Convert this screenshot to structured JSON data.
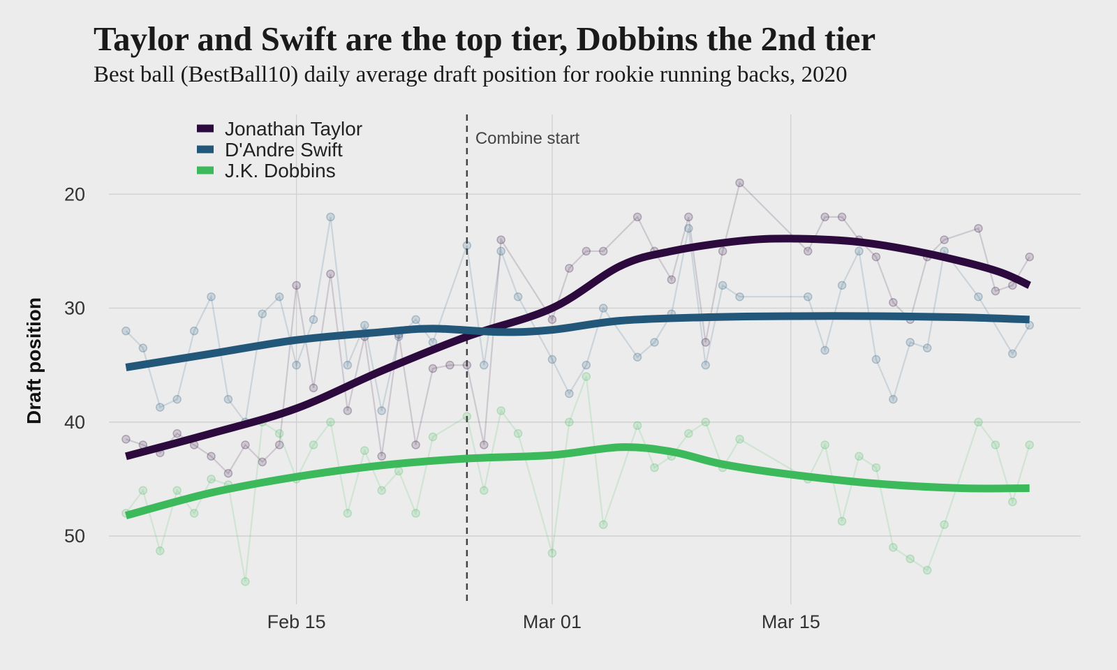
{
  "chart_data": {
    "type": "line",
    "title": "Taylor and Swift are the top tier, Dobbins the 2nd tier",
    "subtitle": "Best ball (BestBall10) daily average draft position for rookie running backs, 2020",
    "ylabel": "Draft position",
    "xlabel": "",
    "y_reversed": true,
    "ylim": [
      56,
      13
    ],
    "xlim": [
      "2020-02-04",
      "2020-04-01"
    ],
    "x_ticks": [
      {
        "date": "2020-02-15",
        "label": "Feb 15"
      },
      {
        "date": "2020-03-01",
        "label": "Mar 01"
      },
      {
        "date": "2020-03-15",
        "label": "Mar 15"
      }
    ],
    "y_ticks": [
      20,
      30,
      40,
      50
    ],
    "grid": true,
    "legend_position": "top-left",
    "annotations": [
      {
        "type": "vline",
        "date": "2020-02-25",
        "label": "Combine start"
      }
    ],
    "series": [
      {
        "name": "Jonathan Taylor",
        "color": "#2d0a3e",
        "points": [
          [
            "2020-02-05",
            41.5
          ],
          [
            "2020-02-06",
            42
          ],
          [
            "2020-02-07",
            42.7
          ],
          [
            "2020-02-08",
            41
          ],
          [
            "2020-02-09",
            42
          ],
          [
            "2020-02-10",
            43
          ],
          [
            "2020-02-11",
            44.5
          ],
          [
            "2020-02-12",
            42
          ],
          [
            "2020-02-13",
            43.5
          ],
          [
            "2020-02-14",
            42
          ],
          [
            "2020-02-15",
            28
          ],
          [
            "2020-02-16",
            37
          ],
          [
            "2020-02-17",
            27
          ],
          [
            "2020-02-18",
            39
          ],
          [
            "2020-02-19",
            32.5
          ],
          [
            "2020-02-20",
            43
          ],
          [
            "2020-02-21",
            32.3
          ],
          [
            "2020-02-22",
            42
          ],
          [
            "2020-02-23",
            35.3
          ],
          [
            "2020-02-24",
            35
          ],
          [
            "2020-02-25",
            35
          ],
          [
            "2020-02-26",
            42
          ],
          [
            "2020-02-27",
            24
          ],
          [
            "2020-03-01",
            31
          ],
          [
            "2020-03-02",
            26.5
          ],
          [
            "2020-03-03",
            25
          ],
          [
            "2020-03-04",
            25
          ],
          [
            "2020-03-06",
            22
          ],
          [
            "2020-03-07",
            25
          ],
          [
            "2020-03-08",
            27.5
          ],
          [
            "2020-03-09",
            22
          ],
          [
            "2020-03-10",
            33
          ],
          [
            "2020-03-11",
            25
          ],
          [
            "2020-03-12",
            19
          ],
          [
            "2020-03-16",
            25
          ],
          [
            "2020-03-17",
            22
          ],
          [
            "2020-03-18",
            22
          ],
          [
            "2020-03-19",
            24
          ],
          [
            "2020-03-20",
            25.5
          ],
          [
            "2020-03-21",
            29.5
          ],
          [
            "2020-03-22",
            31
          ],
          [
            "2020-03-23",
            25.5
          ],
          [
            "2020-03-24",
            24
          ],
          [
            "2020-03-26",
            23
          ],
          [
            "2020-03-27",
            28.5
          ],
          [
            "2020-03-28",
            28
          ],
          [
            "2020-03-29",
            25.5
          ]
        ],
        "trend": [
          [
            "2020-02-05",
            43
          ],
          [
            "2020-02-10",
            41
          ],
          [
            "2020-02-15",
            38.8
          ],
          [
            "2020-02-20",
            35.5
          ],
          [
            "2020-02-25",
            32.5
          ],
          [
            "2020-03-01",
            30
          ],
          [
            "2020-03-05",
            26.3
          ],
          [
            "2020-03-08",
            25
          ],
          [
            "2020-03-12",
            24.1
          ],
          [
            "2020-03-15",
            23.9
          ],
          [
            "2020-03-19",
            24.2
          ],
          [
            "2020-03-23",
            25.2
          ],
          [
            "2020-03-27",
            26.7
          ],
          [
            "2020-03-29",
            28
          ]
        ]
      },
      {
        "name": "D'Andre Swift",
        "color": "#22577a",
        "points": [
          [
            "2020-02-05",
            32
          ],
          [
            "2020-02-06",
            33.5
          ],
          [
            "2020-02-07",
            38.7
          ],
          [
            "2020-02-08",
            38
          ],
          [
            "2020-02-09",
            32
          ],
          [
            "2020-02-10",
            29
          ],
          [
            "2020-02-11",
            38
          ],
          [
            "2020-02-12",
            40
          ],
          [
            "2020-02-13",
            30.5
          ],
          [
            "2020-02-14",
            29
          ],
          [
            "2020-02-15",
            35
          ],
          [
            "2020-02-16",
            31
          ],
          [
            "2020-02-17",
            22
          ],
          [
            "2020-02-18",
            35
          ],
          [
            "2020-02-19",
            31.5
          ],
          [
            "2020-02-20",
            39
          ],
          [
            "2020-02-21",
            32.5
          ],
          [
            "2020-02-22",
            31
          ],
          [
            "2020-02-23",
            33
          ],
          [
            "2020-02-25",
            24.5
          ],
          [
            "2020-02-26",
            35
          ],
          [
            "2020-02-27",
            25
          ],
          [
            "2020-02-28",
            29
          ],
          [
            "2020-03-01",
            34.5
          ],
          [
            "2020-03-02",
            37.5
          ],
          [
            "2020-03-03",
            35
          ],
          [
            "2020-03-04",
            30
          ],
          [
            "2020-03-06",
            34.3
          ],
          [
            "2020-03-07",
            33
          ],
          [
            "2020-03-08",
            30.5
          ],
          [
            "2020-03-09",
            23
          ],
          [
            "2020-03-10",
            35
          ],
          [
            "2020-03-11",
            28
          ],
          [
            "2020-03-12",
            29
          ],
          [
            "2020-03-16",
            29
          ],
          [
            "2020-03-17",
            33.7
          ],
          [
            "2020-03-18",
            28
          ],
          [
            "2020-03-19",
            25
          ],
          [
            "2020-03-20",
            34.5
          ],
          [
            "2020-03-21",
            38
          ],
          [
            "2020-03-22",
            33
          ],
          [
            "2020-03-23",
            33.5
          ],
          [
            "2020-03-24",
            25
          ],
          [
            "2020-03-26",
            29
          ],
          [
            "2020-03-28",
            34
          ],
          [
            "2020-03-29",
            31.5
          ]
        ],
        "trend": [
          [
            "2020-02-05",
            35.2
          ],
          [
            "2020-02-10",
            34
          ],
          [
            "2020-02-15",
            32.8
          ],
          [
            "2020-02-20",
            32.1
          ],
          [
            "2020-02-23",
            31.8
          ],
          [
            "2020-02-27",
            32.1
          ],
          [
            "2020-03-01",
            31.9
          ],
          [
            "2020-03-05",
            31.1
          ],
          [
            "2020-03-10",
            30.8
          ],
          [
            "2020-03-15",
            30.7
          ],
          [
            "2020-03-20",
            30.7
          ],
          [
            "2020-03-25",
            30.8
          ],
          [
            "2020-03-29",
            31
          ]
        ]
      },
      {
        "name": "J.K. Dobbins",
        "color": "#3cb95a",
        "points": [
          [
            "2020-02-05",
            48
          ],
          [
            "2020-02-06",
            46
          ],
          [
            "2020-02-07",
            51.3
          ],
          [
            "2020-02-08",
            46
          ],
          [
            "2020-02-09",
            48
          ],
          [
            "2020-02-10",
            45
          ],
          [
            "2020-02-11",
            45.5
          ],
          [
            "2020-02-12",
            54
          ],
          [
            "2020-02-13",
            40
          ],
          [
            "2020-02-14",
            41
          ],
          [
            "2020-02-15",
            45
          ],
          [
            "2020-02-16",
            42
          ],
          [
            "2020-02-17",
            40
          ],
          [
            "2020-02-18",
            48
          ],
          [
            "2020-02-19",
            42.5
          ],
          [
            "2020-02-20",
            46
          ],
          [
            "2020-02-21",
            44.3
          ],
          [
            "2020-02-22",
            48
          ],
          [
            "2020-02-23",
            41.3
          ],
          [
            "2020-02-25",
            39.5
          ],
          [
            "2020-02-26",
            46
          ],
          [
            "2020-02-27",
            39
          ],
          [
            "2020-02-28",
            41
          ],
          [
            "2020-03-01",
            51.5
          ],
          [
            "2020-03-02",
            40
          ],
          [
            "2020-03-03",
            36
          ],
          [
            "2020-03-04",
            49
          ],
          [
            "2020-03-06",
            40.3
          ],
          [
            "2020-03-07",
            44
          ],
          [
            "2020-03-08",
            43
          ],
          [
            "2020-03-09",
            41
          ],
          [
            "2020-03-10",
            40
          ],
          [
            "2020-03-11",
            44
          ],
          [
            "2020-03-12",
            41.5
          ],
          [
            "2020-03-16",
            45
          ],
          [
            "2020-03-17",
            42
          ],
          [
            "2020-03-18",
            48.7
          ],
          [
            "2020-03-19",
            43
          ],
          [
            "2020-03-20",
            44
          ],
          [
            "2020-03-21",
            51
          ],
          [
            "2020-03-22",
            52
          ],
          [
            "2020-03-23",
            53
          ],
          [
            "2020-03-24",
            49
          ],
          [
            "2020-03-26",
            40
          ],
          [
            "2020-03-27",
            42
          ],
          [
            "2020-03-28",
            47
          ],
          [
            "2020-03-29",
            42
          ]
        ],
        "trend": [
          [
            "2020-02-05",
            48.2
          ],
          [
            "2020-02-10",
            46.2
          ],
          [
            "2020-02-15",
            44.8
          ],
          [
            "2020-02-20",
            43.8
          ],
          [
            "2020-02-25",
            43.2
          ],
          [
            "2020-03-01",
            42.9
          ],
          [
            "2020-03-05",
            42.2
          ],
          [
            "2020-03-08",
            42.6
          ],
          [
            "2020-03-11",
            43.7
          ],
          [
            "2020-03-15",
            44.6
          ],
          [
            "2020-03-20",
            45.4
          ],
          [
            "2020-03-25",
            45.8
          ],
          [
            "2020-03-29",
            45.8
          ]
        ]
      }
    ]
  }
}
